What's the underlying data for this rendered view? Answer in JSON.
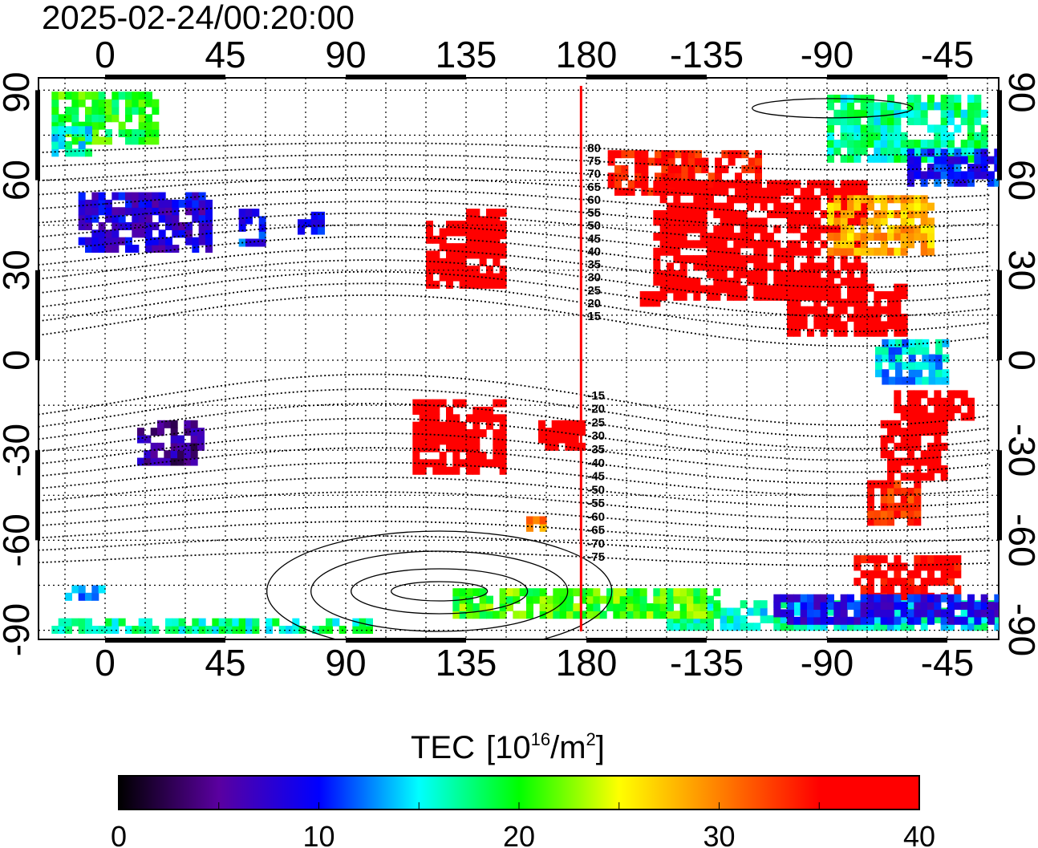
{
  "title": "2025-02-24/00:20:00",
  "map": {
    "lon_ticks": [
      {
        "lon": 0,
        "label": "0"
      },
      {
        "lon": 45,
        "label": "45"
      },
      {
        "lon": 90,
        "label": "90"
      },
      {
        "lon": 135,
        "label": "135"
      },
      {
        "lon": 180,
        "label": "180"
      },
      {
        "lon": 225,
        "label": "-135"
      },
      {
        "lon": 270,
        "label": "-90"
      },
      {
        "lon": 315,
        "label": "-45"
      }
    ],
    "lat_ticks": [
      {
        "lat": 90,
        "label": "90"
      },
      {
        "lat": 60,
        "label": "60"
      },
      {
        "lat": 30,
        "label": "30"
      },
      {
        "lat": 0,
        "label": "0"
      },
      {
        "lat": -30,
        "label": "-30"
      },
      {
        "lat": -60,
        "label": "-60"
      },
      {
        "lat": -90,
        "label": "-90"
      }
    ],
    "lon_range": [
      -25,
      334
    ],
    "lat_range": [
      -93,
      94
    ],
    "dateline_lon": 178,
    "dateline_color": "#ff0000",
    "mlat_labels": [
      "80",
      "75",
      "70",
      "65",
      "60",
      "55",
      "50",
      "45",
      "40",
      "35",
      "30",
      "25",
      "20",
      "15",
      "-15",
      "-20",
      "-25",
      "-30",
      "-35",
      "-40",
      "-45",
      "-50",
      "-55",
      "-60",
      "-65",
      "-70",
      "-75"
    ],
    "tec_regions": [
      {
        "lon": [
          -20,
          20
        ],
        "lat": [
          72,
          88
        ],
        "tec": 20
      },
      {
        "lon": [
          -20,
          -5
        ],
        "lat": [
          68,
          78
        ],
        "tec": 16
      },
      {
        "lon": [
          -10,
          40
        ],
        "lat": [
          36,
          56
        ],
        "tec": 8
      },
      {
        "lon": [
          50,
          60
        ],
        "lat": [
          38,
          50
        ],
        "tec": 10
      },
      {
        "lon": [
          72,
          82
        ],
        "lat": [
          42,
          48
        ],
        "tec": 9
      },
      {
        "lon": [
          12,
          37
        ],
        "lat": [
          -35,
          -22
        ],
        "tec": 5
      },
      {
        "lon": [
          120,
          150
        ],
        "lat": [
          24,
          46
        ],
        "tec": 40
      },
      {
        "lon": [
          135,
          148
        ],
        "lat": [
          38,
          50
        ],
        "tec": 40
      },
      {
        "lon": [
          200,
          210
        ],
        "lat": [
          18,
          23
        ],
        "tec": 40
      },
      {
        "lon": [
          188,
          245
        ],
        "lat": [
          55,
          70
        ],
        "tec": 35
      },
      {
        "lon": [
          205,
          285
        ],
        "lat": [
          20,
          58
        ],
        "tec": 39
      },
      {
        "lon": [
          270,
          310
        ],
        "lat": [
          35,
          55
        ],
        "tec": 28
      },
      {
        "lon": [
          255,
          300
        ],
        "lat": [
          8,
          25
        ],
        "tec": 40
      },
      {
        "lon": [
          270,
          330
        ],
        "lat": [
          66,
          88
        ],
        "tec": 17
      },
      {
        "lon": [
          300,
          334
        ],
        "lat": [
          58,
          70
        ],
        "tec": 10
      },
      {
        "lon": [
          288,
          315
        ],
        "lat": [
          -8,
          5
        ],
        "tec": 14
      },
      {
        "lon": [
          295,
          325
        ],
        "lat": [
          -20,
          -10
        ],
        "tec": 39
      },
      {
        "lon": [
          290,
          315
        ],
        "lat": [
          -40,
          -20
        ],
        "tec": 39
      },
      {
        "lon": [
          285,
          305
        ],
        "lat": [
          -55,
          -40
        ],
        "tec": 34
      },
      {
        "lon": [
          115,
          150
        ],
        "lat": [
          -38,
          -15
        ],
        "tec": 40
      },
      {
        "lon": [
          162,
          178
        ],
        "lat": [
          -30,
          -22
        ],
        "tec": 40
      },
      {
        "lon": [
          155,
          165
        ],
        "lat": [
          -57,
          -53
        ],
        "tec": 30
      },
      {
        "lon": [
          280,
          320
        ],
        "lat": [
          -80,
          -65
        ],
        "tec": 36
      },
      {
        "lon": [
          210,
          334
        ],
        "lat": [
          -90,
          -80
        ],
        "tec": 16
      },
      {
        "lon": [
          130,
          230
        ],
        "lat": [
          -86,
          -78
        ],
        "tec": 21
      },
      {
        "lon": [
          -20,
          100
        ],
        "lat": [
          -91,
          -86
        ],
        "tec": 17
      },
      {
        "lon": [
          -15,
          0
        ],
        "lat": [
          -80,
          -76
        ],
        "tec": 12
      },
      {
        "lon": [
          250,
          334
        ],
        "lat": [
          -88,
          -80
        ],
        "tec": 9
      }
    ]
  },
  "colorbar": {
    "title": "TEC",
    "unit_base": "[10",
    "unit_exp": "16",
    "unit_mid": "/m",
    "unit_exp2": "2",
    "unit_end": "]",
    "min": 0,
    "max": 40,
    "tick_labels": [
      "0",
      "10",
      "20",
      "30",
      "40"
    ],
    "stops": [
      "#000000",
      "#5a00a0",
      "#0000ff",
      "#00ffff",
      "#00ff00",
      "#ffff00",
      "#ff8000",
      "#ff0000",
      "#ff0000"
    ]
  }
}
